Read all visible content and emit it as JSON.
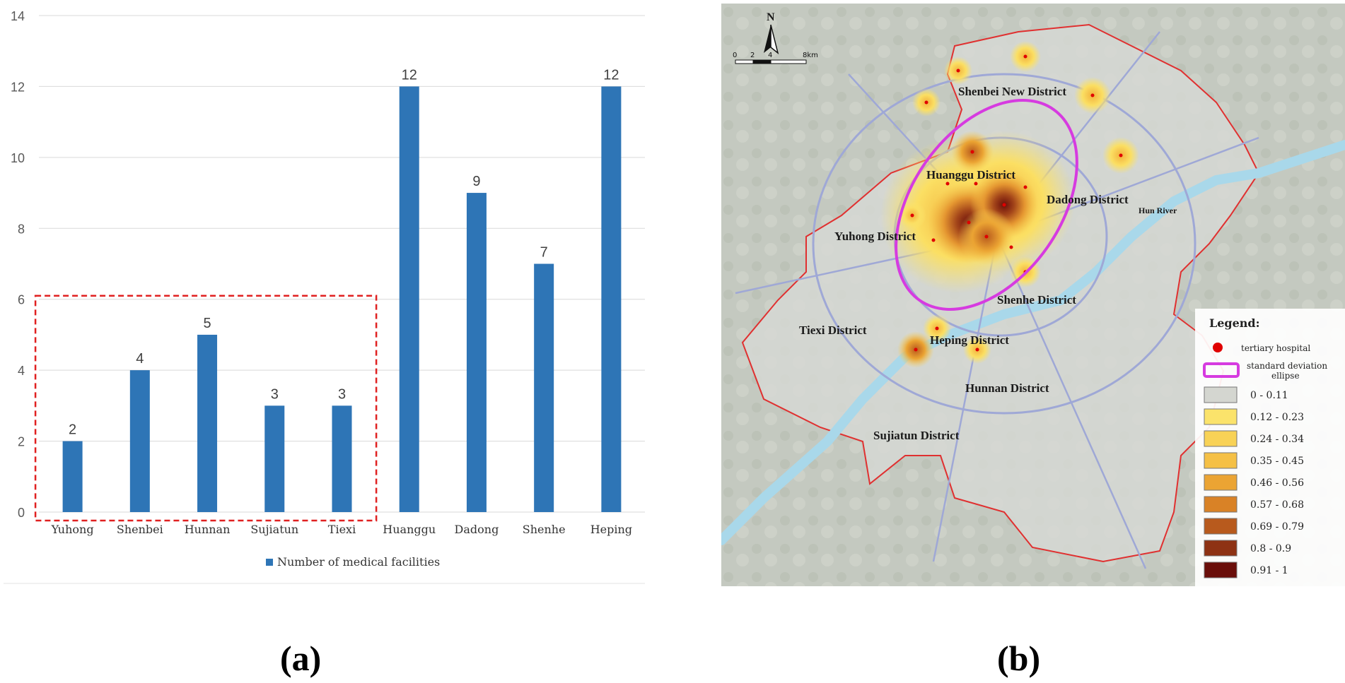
{
  "chart_data": {
    "type": "bar",
    "categories": [
      "Yuhong",
      "Shenbei",
      "Hunnan",
      "Sujiatun",
      "Tiexi",
      "Huanggu",
      "Dadong",
      "Shenhe",
      "Heping"
    ],
    "series": [
      {
        "name": "Number of medical facilities",
        "color": "#2e75b6",
        "values": [
          2,
          4,
          5,
          3,
          3,
          12,
          9,
          7,
          12
        ]
      }
    ],
    "ylim": [
      0,
      14
    ],
    "yticks": [
      0,
      2,
      4,
      6,
      8,
      10,
      12,
      14
    ],
    "grid": true,
    "legend_position": "bottom-center",
    "highlight_box": {
      "from_category": "Yuhong",
      "to_category": "Tiexi",
      "color": "#e02020",
      "style": "dashed"
    }
  },
  "captions": {
    "a": "(a)",
    "b": "(b)"
  },
  "map": {
    "north_label": "N",
    "scale_labels": [
      "0",
      "2",
      "4",
      "8km"
    ],
    "districts": [
      "Shenbei New District",
      "Huanggu District",
      "Dadong District",
      "Yuhong District",
      "Shenhe District",
      "Tiexi District",
      "Heping District",
      "Hunnan District",
      "Sujiatun District"
    ],
    "river_label": "Hun River",
    "legend": {
      "title": "Legend:",
      "hospital_label": "tertiary hospital",
      "ellipse_label_line1": "standard deviation",
      "ellipse_label_line2": "ellipse",
      "hospital_color": "#e00000",
      "ellipse_color": "#d63be0",
      "classes": [
        {
          "label": "0 - 0.11",
          "color": "#d4d6d0"
        },
        {
          "label": "0.12 - 0.23",
          "color": "#fbe36b"
        },
        {
          "label": "0.24 - 0.34",
          "color": "#f8d256"
        },
        {
          "label": "0.35 - 0.45",
          "color": "#f5c045"
        },
        {
          "label": "0.46 - 0.56",
          "color": "#eba433"
        },
        {
          "label": "0.57 - 0.68",
          "color": "#d98226"
        },
        {
          "label": "0.69 - 0.79",
          "color": "#b85a1d"
        },
        {
          "label": "0.8 - 0.9",
          "color": "#8e3214"
        },
        {
          "label": "0.91 - 1",
          "color": "#6a0e0a"
        }
      ]
    }
  }
}
